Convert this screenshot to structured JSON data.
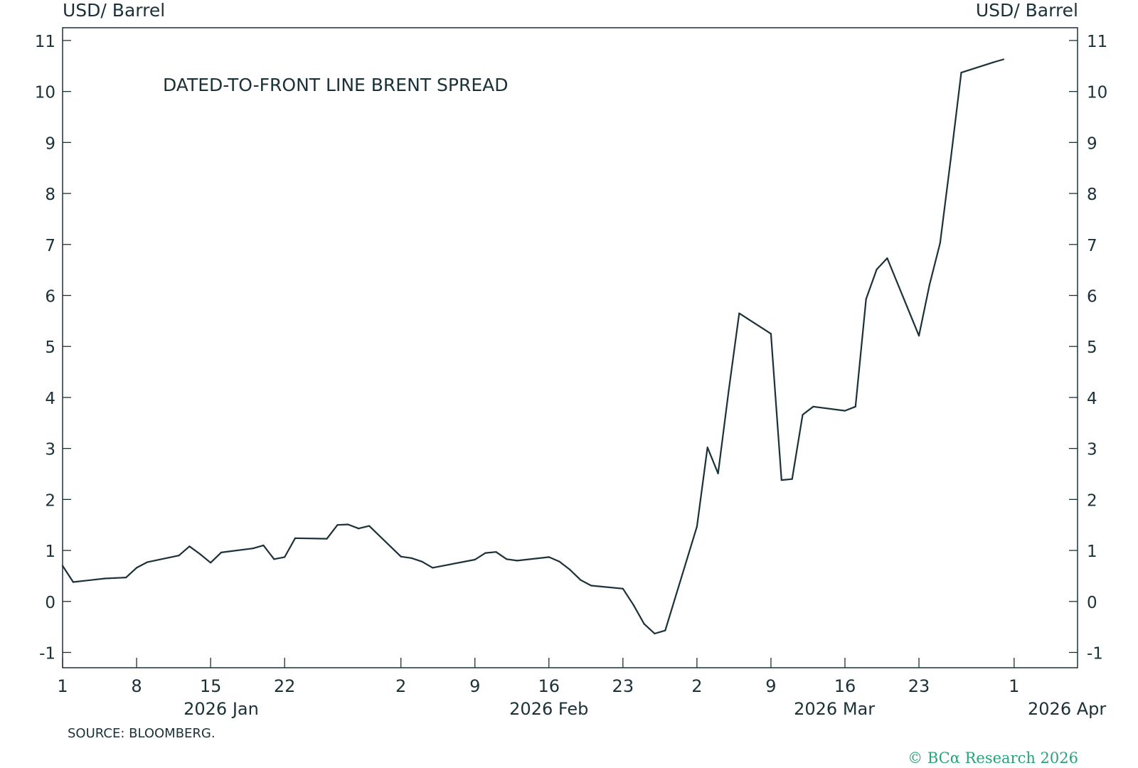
{
  "chart_data": {
    "type": "line",
    "title": "DATED-TO-FRONT LINE BRENT SPREAD",
    "ylabel_left": "USD/ Barrel",
    "ylabel_right": "USD/ Barrel",
    "ylim": [
      -1.3,
      11.25
    ],
    "y_ticks": [
      -1,
      0,
      1,
      2,
      3,
      4,
      5,
      6,
      7,
      8,
      9,
      10,
      11
    ],
    "x_ticks": [
      {
        "date": "2026-01-01",
        "label": "1"
      },
      {
        "date": "2026-01-08",
        "label": "8"
      },
      {
        "date": "2026-01-15",
        "label": "15"
      },
      {
        "date": "2026-01-22",
        "label": "22"
      },
      {
        "date": "2026-02-02",
        "label": "2"
      },
      {
        "date": "2026-02-09",
        "label": "9"
      },
      {
        "date": "2026-02-16",
        "label": "16"
      },
      {
        "date": "2026-02-23",
        "label": "23"
      },
      {
        "date": "2026-03-02",
        "label": "2"
      },
      {
        "date": "2026-03-09",
        "label": "9"
      },
      {
        "date": "2026-03-16",
        "label": "16"
      },
      {
        "date": "2026-03-23",
        "label": "23"
      },
      {
        "date": "2026-04-01",
        "label": "1"
      }
    ],
    "month_labels": [
      {
        "date": "2026-01-16",
        "label": "2026 Jan"
      },
      {
        "date": "2026-02-16",
        "label": "2026 Feb"
      },
      {
        "date": "2026-03-15",
        "label": "2026 Mar"
      },
      {
        "date": "2026-04-06",
        "label": "2026 Apr"
      }
    ],
    "xlim": [
      "2026-01-01",
      "2026-04-07"
    ],
    "grid": false,
    "series": [
      {
        "color": "#1b3138",
        "points": [
          {
            "x": "2026-01-01",
            "y": 0.7
          },
          {
            "x": "2026-01-02",
            "y": 0.38
          },
          {
            "x": "2026-01-05",
            "y": 0.45
          },
          {
            "x": "2026-01-06",
            "y": 0.46
          },
          {
            "x": "2026-01-07",
            "y": 0.47
          },
          {
            "x": "2026-01-08",
            "y": 0.66
          },
          {
            "x": "2026-01-09",
            "y": 0.77
          },
          {
            "x": "2026-01-12",
            "y": 0.9
          },
          {
            "x": "2026-01-13",
            "y": 1.08
          },
          {
            "x": "2026-01-14",
            "y": 0.93
          },
          {
            "x": "2026-01-15",
            "y": 0.76
          },
          {
            "x": "2026-01-16",
            "y": 0.96
          },
          {
            "x": "2026-01-19",
            "y": 1.04
          },
          {
            "x": "2026-01-20",
            "y": 1.1
          },
          {
            "x": "2026-01-21",
            "y": 0.83
          },
          {
            "x": "2026-01-22",
            "y": 0.87
          },
          {
            "x": "2026-01-23",
            "y": 1.24
          },
          {
            "x": "2026-01-26",
            "y": 1.23
          },
          {
            "x": "2026-01-27",
            "y": 1.5
          },
          {
            "x": "2026-01-28",
            "y": 1.51
          },
          {
            "x": "2026-01-29",
            "y": 1.43
          },
          {
            "x": "2026-01-30",
            "y": 1.48
          },
          {
            "x": "2026-02-02",
            "y": 0.88
          },
          {
            "x": "2026-02-03",
            "y": 0.85
          },
          {
            "x": "2026-02-04",
            "y": 0.78
          },
          {
            "x": "2026-02-05",
            "y": 0.66
          },
          {
            "x": "2026-02-06",
            "y": 0.7
          },
          {
            "x": "2026-02-09",
            "y": 0.82
          },
          {
            "x": "2026-02-10",
            "y": 0.95
          },
          {
            "x": "2026-02-11",
            "y": 0.97
          },
          {
            "x": "2026-02-12",
            "y": 0.83
          },
          {
            "x": "2026-02-13",
            "y": 0.8
          },
          {
            "x": "2026-02-16",
            "y": 0.87
          },
          {
            "x": "2026-02-17",
            "y": 0.78
          },
          {
            "x": "2026-02-18",
            "y": 0.62
          },
          {
            "x": "2026-02-19",
            "y": 0.42
          },
          {
            "x": "2026-02-20",
            "y": 0.31
          },
          {
            "x": "2026-02-23",
            "y": 0.25
          },
          {
            "x": "2026-02-24",
            "y": -0.07
          },
          {
            "x": "2026-02-25",
            "y": -0.44
          },
          {
            "x": "2026-02-26",
            "y": -0.63
          },
          {
            "x": "2026-02-27",
            "y": -0.57
          },
          {
            "x": "2026-03-02",
            "y": 1.47
          },
          {
            "x": "2026-03-03",
            "y": 3.02
          },
          {
            "x": "2026-03-04",
            "y": 2.51
          },
          {
            "x": "2026-03-05",
            "y": 4.13
          },
          {
            "x": "2026-03-06",
            "y": 5.65
          },
          {
            "x": "2026-03-09",
            "y": 5.25
          },
          {
            "x": "2026-03-10",
            "y": 2.38
          },
          {
            "x": "2026-03-11",
            "y": 2.4
          },
          {
            "x": "2026-03-12",
            "y": 3.66
          },
          {
            "x": "2026-03-13",
            "y": 3.82
          },
          {
            "x": "2026-03-16",
            "y": 3.74
          },
          {
            "x": "2026-03-17",
            "y": 3.82
          },
          {
            "x": "2026-03-18",
            "y": 5.93
          },
          {
            "x": "2026-03-19",
            "y": 6.51
          },
          {
            "x": "2026-03-20",
            "y": 6.73
          },
          {
            "x": "2026-03-23",
            "y": 5.21
          },
          {
            "x": "2026-03-24",
            "y": 6.21
          },
          {
            "x": "2026-03-25",
            "y": 7.03
          },
          {
            "x": "2026-03-26",
            "y": 8.66
          },
          {
            "x": "2026-03-27",
            "y": 10.37
          },
          {
            "x": "2026-03-30",
            "y": 10.57
          },
          {
            "x": "2026-03-31",
            "y": 10.63
          }
        ]
      }
    ]
  },
  "footer": {
    "source": "SOURCE: BLOOMBERG.",
    "copyright": "© BCα Research 2026"
  }
}
